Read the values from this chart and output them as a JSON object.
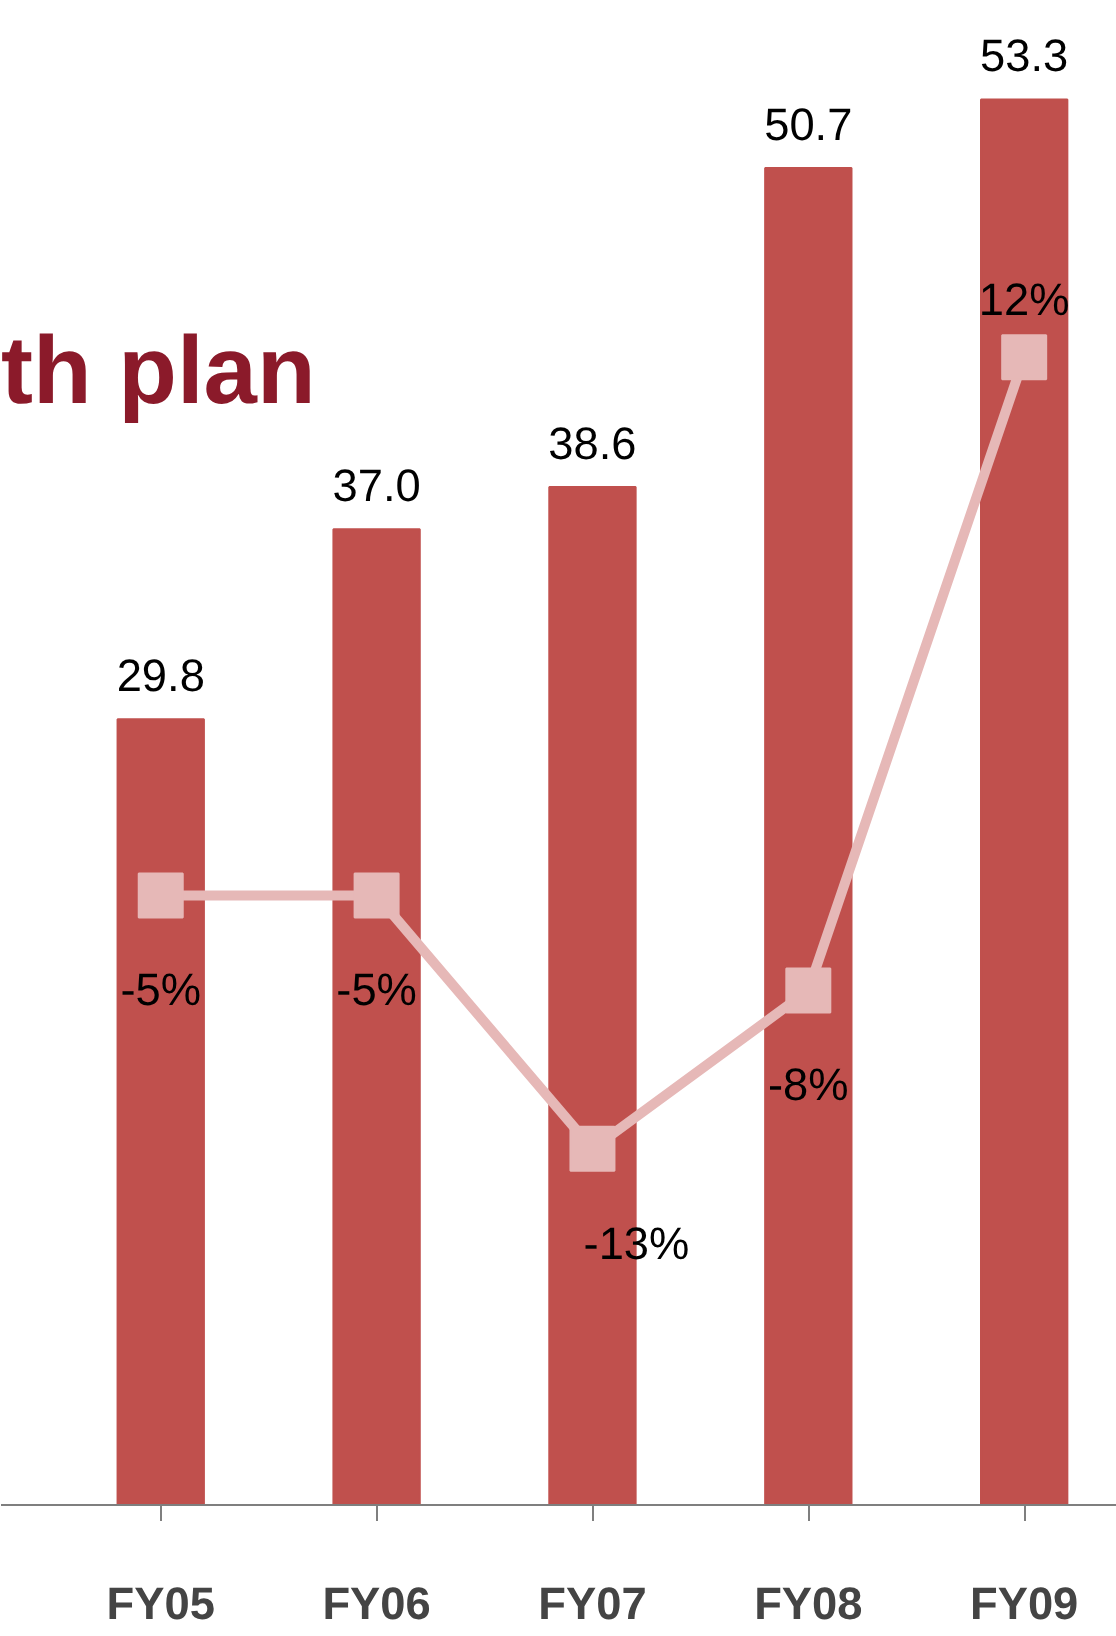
{
  "chart_data": {
    "type": "bar",
    "title": "th plan",
    "categories": [
      "FY05",
      "FY06",
      "FY07",
      "FY08",
      "FY09"
    ],
    "data_labels": true,
    "tick_labels": "x",
    "series": [
      {
        "color": "#c0504d",
        "values": [
          29.8,
          37.0,
          38.6,
          50.7,
          53.3
        ],
        "value_labels": [
          "29.8",
          "37.0",
          "38.6",
          "50.7",
          "53.3"
        ]
      },
      {
        "type": "line",
        "axis": "y2",
        "color": "#e6b8b7",
        "marker": "square",
        "values": [
          -5,
          -5,
          -13,
          -8,
          12
        ],
        "value_labels": [
          "-5%",
          "-5%",
          "-13%",
          "-8%",
          "12%"
        ]
      }
    ]
  }
}
